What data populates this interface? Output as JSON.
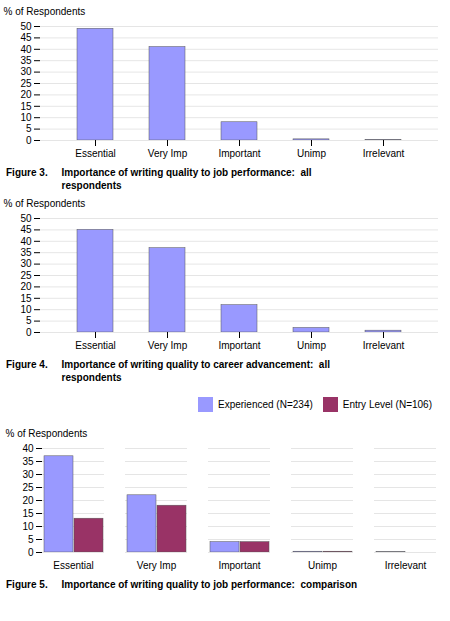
{
  "chart_data": [
    {
      "type": "bar",
      "categories": [
        "Essential",
        "Very Imp",
        "Important",
        "Unimp",
        "Irrelevant"
      ],
      "values": [
        49,
        41,
        8,
        0.5,
        0.2
      ],
      "color": "#9999ff",
      "ylabel": "% of Respondents",
      "ylim": [
        0,
        50
      ],
      "yticks": [
        0,
        5,
        10,
        15,
        20,
        25,
        30,
        35,
        40,
        45,
        50
      ],
      "grid": true,
      "caption": [
        "Figure 3.     Importance of writing quality to job performance:  all",
        "                    respondents"
      ]
    },
    {
      "type": "bar",
      "categories": [
        "Essential",
        "Very Imp",
        "Important",
        "Unimp",
        "Irrelevant"
      ],
      "values": [
        45,
        37,
        12,
        2,
        0.8
      ],
      "color": "#9999ff",
      "ylabel": "% of Respondents",
      "ylim": [
        0,
        50
      ],
      "yticks": [
        0,
        5,
        10,
        15,
        20,
        25,
        30,
        35,
        40,
        45,
        50
      ],
      "grid": true,
      "caption": [
        "Figure 4.     Importance of writing quality to career advancement:  all",
        "                    respondents"
      ]
    },
    {
      "type": "bar",
      "categories": [
        "Essential",
        "Very Imp",
        "Important",
        "Unimp",
        "Irrelevant"
      ],
      "series": [
        {
          "name": "Experienced (N=234)",
          "color": "#9999ff",
          "values": [
            37,
            22,
            4,
            0.3,
            0.1
          ]
        },
        {
          "name": "Entry Level (N=106)",
          "color": "#993366",
          "values": [
            13,
            18,
            4,
            0.3,
            0.0
          ]
        }
      ],
      "ylabel": "% of Respondents",
      "ylim": [
        0,
        40
      ],
      "yticks": [
        0,
        5,
        10,
        15,
        20,
        25,
        30,
        35,
        40
      ],
      "grid": true,
      "legend": "upper right",
      "caption": [
        "Figure 5.     Importance of writing quality to job performance:  comparison"
      ]
    }
  ]
}
